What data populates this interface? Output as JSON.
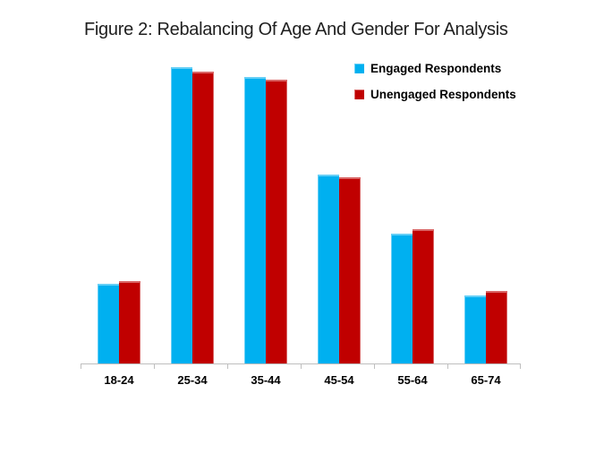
{
  "figure": {
    "title": "Figure 2: Rebalancing Of Age And Gender For Analysis"
  },
  "chart_data": {
    "type": "bar",
    "title": "Figure 2: Rebalancing Of Age And Gender For Analysis",
    "categories": [
      "18-24",
      "25-34",
      "35-44",
      "45-54",
      "55-64",
      "65-74"
    ],
    "series": [
      {
        "name": "Engaged Respondents",
        "color": "#00B0F0",
        "values": [
          7.6,
          28.2,
          27.3,
          18.0,
          12.4,
          6.5
        ]
      },
      {
        "name": "Unengaged Respondents",
        "color": "#C00000",
        "values": [
          7.8,
          27.8,
          27.0,
          17.7,
          12.8,
          6.9
        ]
      }
    ],
    "xlabel": "",
    "ylabel": "",
    "ylim": [
      0,
      30
    ],
    "y_axis_visible": false,
    "gridlines": false,
    "axis_color": "#BFBFBF",
    "legend_position": "top-right"
  }
}
